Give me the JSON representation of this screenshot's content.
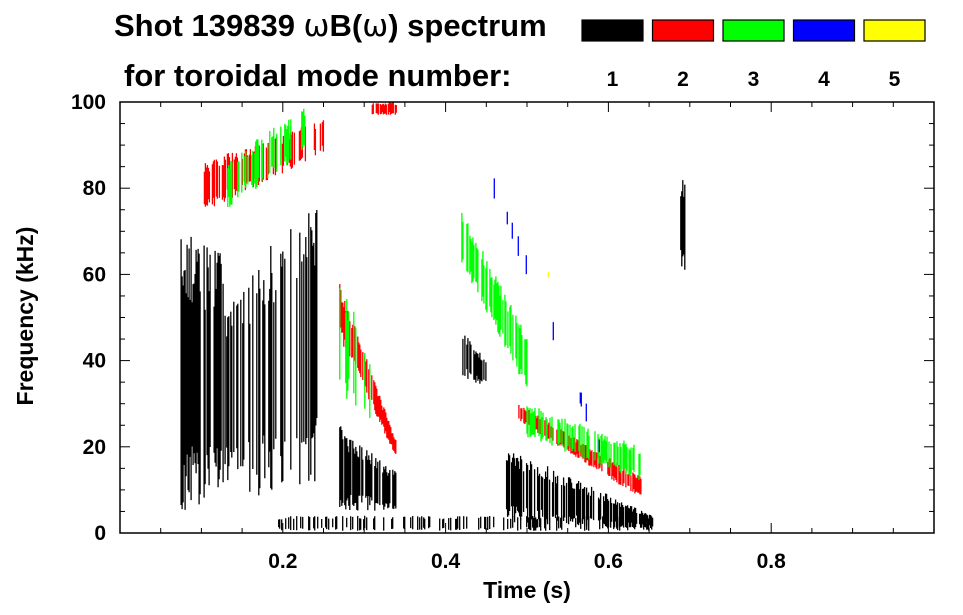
{
  "chart_data": {
    "type": "heatmap",
    "title": {
      "prefix": "Shot 139839 ",
      "omega1": "ω",
      "middle": "B(",
      "omega2": "ω",
      "suffix": ") spectrum"
    },
    "subtitle": "for toroidal mode number:",
    "xlabel": "Time (s)",
    "ylabel": "Frequency (kHz)",
    "xlim": [
      0.0,
      1.0
    ],
    "ylim": [
      0,
      100
    ],
    "x_ticks": [
      "0.2",
      "0.4",
      "0.6",
      "0.8"
    ],
    "x_tick_values": [
      0.2,
      0.4,
      0.6,
      0.8
    ],
    "y_ticks": [
      "0",
      "20",
      "40",
      "60",
      "80",
      "100"
    ],
    "y_tick_values": [
      0,
      20,
      40,
      60,
      80,
      100
    ],
    "legend": {
      "position": "top-right",
      "entries": [
        {
          "label": "1",
          "n": 1,
          "color": "#000000"
        },
        {
          "label": "2",
          "n": 2,
          "color": "#ff0000"
        },
        {
          "label": "3",
          "n": 3,
          "color": "#00ff00"
        },
        {
          "label": "4",
          "n": 4,
          "color": "#0000ff"
        },
        {
          "label": "5",
          "n": 5,
          "color": "#ffff00"
        }
      ]
    },
    "modes": [
      {
        "n": 1,
        "name": "n=1 broadband 0.08-0.13 s",
        "t0": 0.075,
        "t1": 0.13,
        "f_lo0": 5,
        "f_lo1": 5,
        "f_hi0": 70,
        "f_hi1": 65,
        "density": 0.75
      },
      {
        "n": 1,
        "name": "n=1 broadband 0.13-0.25 s",
        "t0": 0.13,
        "t1": 0.245,
        "f_lo0": 8,
        "f_lo1": 10,
        "f_hi0": 55,
        "f_hi1": 80,
        "density": 0.45
      },
      {
        "n": 1,
        "name": "n=1 low-frequency band 0.27-0.34 s",
        "t0": 0.27,
        "t1": 0.34,
        "f_lo0": 5,
        "f_lo1": 5,
        "f_hi0": 25,
        "f_hi1": 14,
        "density": 0.7
      },
      {
        "n": 1,
        "name": "n=1 low-frequency band 0.48-0.66 s",
        "t0": 0.475,
        "t1": 0.655,
        "f_lo0": 2,
        "f_lo1": 1,
        "f_hi0": 20,
        "f_hi1": 4,
        "density": 0.7
      },
      {
        "n": 1,
        "name": "n=1 edge band near 0 kHz",
        "t0": 0.19,
        "t1": 0.66,
        "f_lo0": 0.5,
        "f_lo1": 0.5,
        "f_hi0": 4,
        "f_hi1": 4,
        "density": 0.3
      },
      {
        "n": 1,
        "name": "n=1 burst near 40 kHz",
        "t0": 0.42,
        "t1": 0.45,
        "f_lo0": 36,
        "f_lo1": 34,
        "f_hi0": 47,
        "f_hi1": 40,
        "density": 0.6
      },
      {
        "n": 1,
        "name": "n=1 burst near 70 kHz",
        "t0": 0.689,
        "t1": 0.695,
        "f_lo0": 61,
        "f_lo1": 61,
        "f_hi0": 82,
        "f_hi1": 82,
        "density": 0.9
      },
      {
        "n": 2,
        "name": "n=2 chirp 0.10-0.25 s",
        "t0": 0.1,
        "t1": 0.25,
        "f_lo0": 74,
        "f_lo1": 88,
        "f_hi0": 86,
        "f_hi1": 96,
        "density": 0.55
      },
      {
        "n": 2,
        "name": "n=2 down-chirp 0.27-0.34 s",
        "t0": 0.27,
        "t1": 0.34,
        "f_lo0": 45,
        "f_lo1": 17,
        "f_hi0": 58,
        "f_hi1": 21,
        "density": 0.8
      },
      {
        "n": 2,
        "name": "n=2 down-chirp 0.49-0.64 s",
        "t0": 0.49,
        "t1": 0.64,
        "f_lo0": 26,
        "f_lo1": 8,
        "f_hi0": 30,
        "f_hi1": 13,
        "density": 0.8
      },
      {
        "n": 2,
        "name": "n=2 band near 100 kHz",
        "t0": 0.31,
        "t1": 0.34,
        "f_lo0": 97,
        "f_lo1": 97,
        "f_hi0": 100,
        "f_hi1": 100,
        "density": 0.7
      },
      {
        "n": 3,
        "name": "n=3 chirp 0.13-0.23 s",
        "t0": 0.13,
        "t1": 0.23,
        "f_lo0": 75,
        "f_lo1": 88,
        "f_hi0": 86,
        "f_hi1": 100,
        "density": 0.45
      },
      {
        "n": 3,
        "name": "n=3 down-chirp 0.42-0.50 s",
        "t0": 0.42,
        "t1": 0.5,
        "f_lo0": 62,
        "f_lo1": 33,
        "f_hi0": 75,
        "f_hi1": 46,
        "density": 0.7
      },
      {
        "n": 3,
        "name": "n=3 down-chirp 0.50-0.64 s",
        "t0": 0.5,
        "t1": 0.64,
        "f_lo0": 22,
        "f_lo1": 12,
        "f_hi0": 30,
        "f_hi1": 20,
        "density": 0.55
      },
      {
        "n": 3,
        "name": "n=3 line 0.27-0.31 s",
        "t0": 0.27,
        "t1": 0.31,
        "f_lo0": 32,
        "f_lo1": 25,
        "f_hi0": 60,
        "f_hi1": 40,
        "density": 0.25
      },
      {
        "n": 4,
        "name": "n=4 fragments",
        "t0": 0.45,
        "t1": 0.59,
        "f_lo0": 82,
        "f_lo1": 18,
        "f_hi0": 88,
        "f_hi1": 22,
        "density": 0.1
      },
      {
        "n": 5,
        "name": "n=5 fragments",
        "t0": 0.52,
        "t1": 0.53,
        "f_lo0": 59,
        "f_lo1": 59,
        "f_hi0": 61,
        "f_hi1": 61,
        "density": 0.2
      }
    ]
  }
}
